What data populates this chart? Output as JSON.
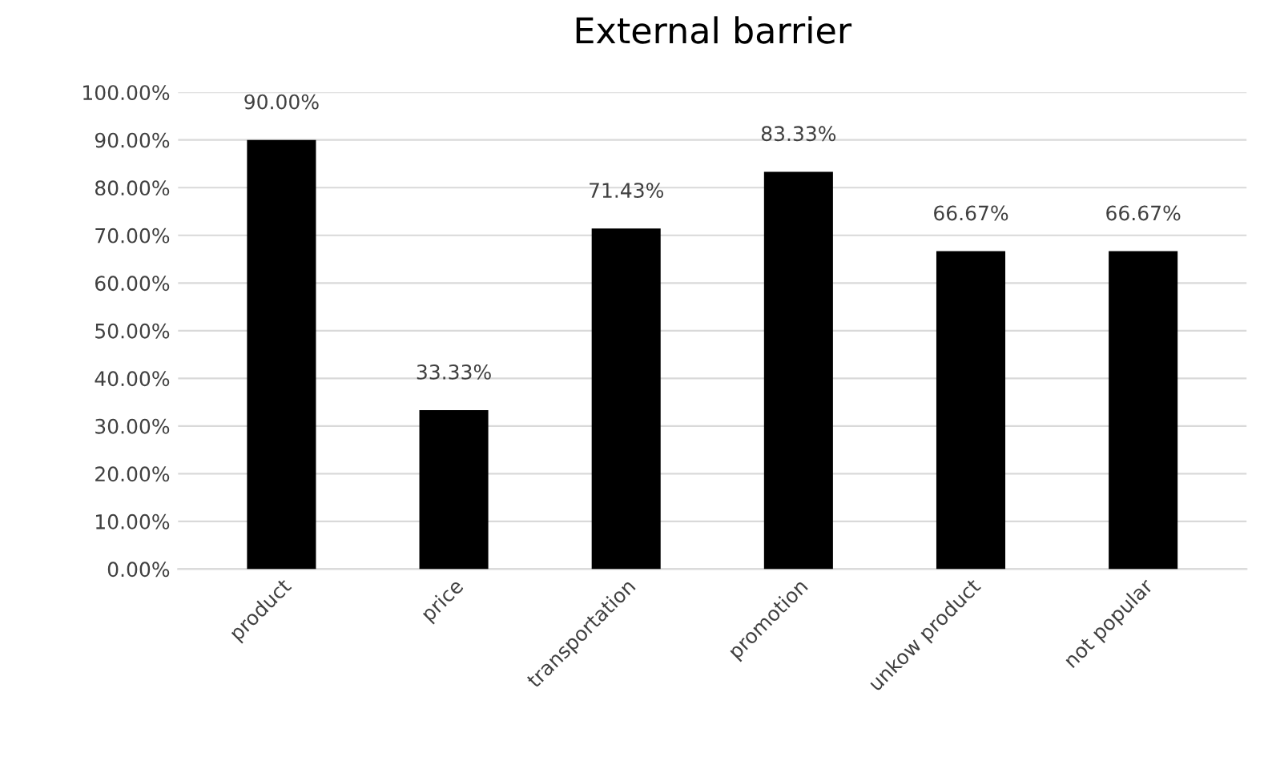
{
  "chart_data": {
    "type": "bar",
    "title": "External barrier",
    "categories": [
      "product",
      "price",
      "transportation",
      "promotion",
      "unkow product",
      "not popular"
    ],
    "values": [
      90.0,
      33.33,
      71.43,
      83.33,
      66.67,
      66.67
    ],
    "value_labels": [
      "90.00%",
      "33.33%",
      "71.43%",
      "83.33%",
      "66.67%",
      "66.67%"
    ],
    "color": "#000000",
    "ylim": [
      0,
      100
    ],
    "yticks": [
      {
        "value": 0,
        "label": "0.00%"
      },
      {
        "value": 10,
        "label": "10.00%"
      },
      {
        "value": 20,
        "label": "20.00%"
      },
      {
        "value": 30,
        "label": "30.00%"
      },
      {
        "value": 40,
        "label": "40.00%"
      },
      {
        "value": 50,
        "label": "50.00%"
      },
      {
        "value": 60,
        "label": "60.00%"
      },
      {
        "value": 70,
        "label": "70.00%"
      },
      {
        "value": 80,
        "label": "80.00%"
      },
      {
        "value": 90,
        "label": "90.00%"
      },
      {
        "value": 100,
        "label": "100.00%"
      }
    ],
    "grid": "y",
    "legend": false
  }
}
